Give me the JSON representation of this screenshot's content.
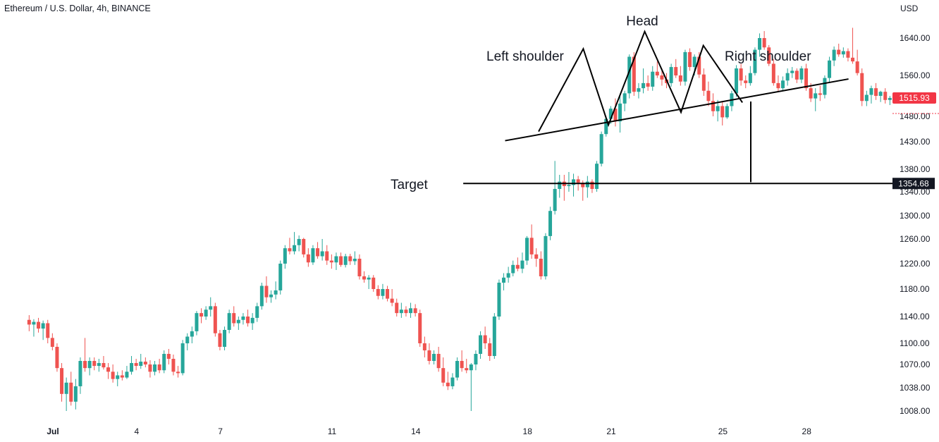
{
  "header": {
    "symbol": "Ethereum / U.S. Dollar, 4h, BINANCE"
  },
  "price_axis": {
    "currency": "USD"
  },
  "colors": {
    "up": "#26a69a",
    "down": "#ef5350",
    "last_price_bg": "#f23645",
    "target_bg": "#131722",
    "pattern_line": "#000000",
    "text": "#131722"
  },
  "chart_data": {
    "type": "candlestick",
    "y_ticks": [
      1008,
      1038,
      1070,
      1100,
      1140,
      1180,
      1220,
      1260,
      1300,
      1340,
      1380,
      1430,
      1480,
      1560,
      1640
    ],
    "y_tick_labels": [
      "1008.00",
      "1038.00",
      "1070.00",
      "1100.00",
      "1140.00",
      "1180.00",
      "1220.00",
      "1260.00",
      "1300.00",
      "1340.00",
      "1380.00",
      "1430.00",
      "1480.00",
      "1560.00",
      "1640.00"
    ],
    "x_ticks": [
      {
        "label": "Jul",
        "day": 1
      },
      {
        "label": "4",
        "day": 4
      },
      {
        "label": "7",
        "day": 7
      },
      {
        "label": "11",
        "day": 11
      },
      {
        "label": "14",
        "day": 14
      },
      {
        "label": "18",
        "day": 18
      },
      {
        "label": "21",
        "day": 21
      },
      {
        "label": "25",
        "day": 25
      },
      {
        "label": "28",
        "day": 28
      }
    ],
    "candles_per_day": 6,
    "start_day": 0.15,
    "last_price": {
      "value": 1515.93,
      "label": "1515.93"
    },
    "target_price": {
      "value": 1354.68,
      "label": "1354.68"
    },
    "annotations": {
      "head": "Head",
      "left_shoulder": "Left shoulder",
      "right_shoulder": "Right shoulder",
      "target": "Target"
    },
    "pattern": {
      "neckline": [
        [
          17.2,
          1432
        ],
        [
          29.5,
          1553
        ]
      ],
      "outline": [
        [
          18.4,
          1450
        ],
        [
          20.0,
          1617
        ],
        [
          20.9,
          1463
        ],
        [
          22.2,
          1654
        ],
        [
          23.5,
          1488
        ],
        [
          24.3,
          1624
        ],
        [
          25.7,
          1507
        ]
      ],
      "target_line": {
        "x_start": 15.7,
        "value": 1354.68
      },
      "measure_line": {
        "x": 26.0,
        "top": 1509,
        "bottom": 1357
      }
    },
    "candles": [
      {
        "o": 1135,
        "h": 1142,
        "l": 1118,
        "c": 1128
      },
      {
        "o": 1128,
        "h": 1136,
        "l": 1110,
        "c": 1132
      },
      {
        "o": 1132,
        "h": 1138,
        "l": 1116,
        "c": 1122
      },
      {
        "o": 1122,
        "h": 1134,
        "l": 1105,
        "c": 1130
      },
      {
        "o": 1130,
        "h": 1135,
        "l": 1100,
        "c": 1108
      },
      {
        "o": 1108,
        "h": 1115,
        "l": 1090,
        "c": 1095
      },
      {
        "o": 1095,
        "h": 1100,
        "l": 1060,
        "c": 1065
      },
      {
        "o": 1065,
        "h": 1072,
        "l": 1020,
        "c": 1030
      },
      {
        "o": 1030,
        "h": 1052,
        "l": 1008,
        "c": 1045
      },
      {
        "o": 1045,
        "h": 1060,
        "l": 1015,
        "c": 1020
      },
      {
        "o": 1020,
        "h": 1050,
        "l": 1010,
        "c": 1040
      },
      {
        "o": 1040,
        "h": 1080,
        "l": 1030,
        "c": 1075
      },
      {
        "o": 1075,
        "h": 1108,
        "l": 1060,
        "c": 1065
      },
      {
        "o": 1065,
        "h": 1080,
        "l": 1055,
        "c": 1075
      },
      {
        "o": 1075,
        "h": 1080,
        "l": 1062,
        "c": 1068
      },
      {
        "o": 1068,
        "h": 1078,
        "l": 1060,
        "c": 1072
      },
      {
        "o": 1072,
        "h": 1082,
        "l": 1063,
        "c": 1066
      },
      {
        "o": 1066,
        "h": 1072,
        "l": 1050,
        "c": 1060
      },
      {
        "o": 1060,
        "h": 1070,
        "l": 1045,
        "c": 1050
      },
      {
        "o": 1050,
        "h": 1060,
        "l": 1040,
        "c": 1055
      },
      {
        "o": 1055,
        "h": 1062,
        "l": 1048,
        "c": 1052
      },
      {
        "o": 1052,
        "h": 1068,
        "l": 1050,
        "c": 1060
      },
      {
        "o": 1060,
        "h": 1082,
        "l": 1056,
        "c": 1072
      },
      {
        "o": 1072,
        "h": 1078,
        "l": 1062,
        "c": 1068
      },
      {
        "o": 1068,
        "h": 1085,
        "l": 1064,
        "c": 1074
      },
      {
        "o": 1074,
        "h": 1080,
        "l": 1066,
        "c": 1070
      },
      {
        "o": 1070,
        "h": 1076,
        "l": 1052,
        "c": 1060
      },
      {
        "o": 1060,
        "h": 1075,
        "l": 1055,
        "c": 1070
      },
      {
        "o": 1070,
        "h": 1078,
        "l": 1058,
        "c": 1062
      },
      {
        "o": 1062,
        "h": 1090,
        "l": 1058,
        "c": 1085
      },
      {
        "o": 1085,
        "h": 1092,
        "l": 1070,
        "c": 1078
      },
      {
        "o": 1078,
        "h": 1084,
        "l": 1055,
        "c": 1060
      },
      {
        "o": 1060,
        "h": 1068,
        "l": 1052,
        "c": 1058
      },
      {
        "o": 1058,
        "h": 1105,
        "l": 1055,
        "c": 1100
      },
      {
        "o": 1100,
        "h": 1115,
        "l": 1090,
        "c": 1110
      },
      {
        "o": 1110,
        "h": 1125,
        "l": 1100,
        "c": 1118
      },
      {
        "o": 1118,
        "h": 1148,
        "l": 1112,
        "c": 1145
      },
      {
        "o": 1145,
        "h": 1152,
        "l": 1130,
        "c": 1140
      },
      {
        "o": 1140,
        "h": 1155,
        "l": 1135,
        "c": 1150
      },
      {
        "o": 1150,
        "h": 1168,
        "l": 1140,
        "c": 1155
      },
      {
        "o": 1155,
        "h": 1160,
        "l": 1110,
        "c": 1115
      },
      {
        "o": 1115,
        "h": 1120,
        "l": 1090,
        "c": 1095
      },
      {
        "o": 1095,
        "h": 1125,
        "l": 1090,
        "c": 1120
      },
      {
        "o": 1120,
        "h": 1150,
        "l": 1115,
        "c": 1145
      },
      {
        "o": 1145,
        "h": 1155,
        "l": 1125,
        "c": 1130
      },
      {
        "o": 1130,
        "h": 1140,
        "l": 1120,
        "c": 1135
      },
      {
        "o": 1135,
        "h": 1145,
        "l": 1128,
        "c": 1140
      },
      {
        "o": 1140,
        "h": 1150,
        "l": 1125,
        "c": 1130
      },
      {
        "o": 1130,
        "h": 1145,
        "l": 1120,
        "c": 1138
      },
      {
        "o": 1138,
        "h": 1160,
        "l": 1132,
        "c": 1155
      },
      {
        "o": 1155,
        "h": 1190,
        "l": 1150,
        "c": 1185
      },
      {
        "o": 1185,
        "h": 1200,
        "l": 1160,
        "c": 1168
      },
      {
        "o": 1168,
        "h": 1178,
        "l": 1160,
        "c": 1172
      },
      {
        "o": 1172,
        "h": 1192,
        "l": 1165,
        "c": 1178
      },
      {
        "o": 1178,
        "h": 1225,
        "l": 1172,
        "c": 1220
      },
      {
        "o": 1220,
        "h": 1250,
        "l": 1212,
        "c": 1245
      },
      {
        "o": 1245,
        "h": 1262,
        "l": 1235,
        "c": 1240
      },
      {
        "o": 1240,
        "h": 1272,
        "l": 1235,
        "c": 1250
      },
      {
        "o": 1250,
        "h": 1266,
        "l": 1240,
        "c": 1260
      },
      {
        "o": 1260,
        "h": 1262,
        "l": 1230,
        "c": 1235
      },
      {
        "o": 1235,
        "h": 1245,
        "l": 1215,
        "c": 1222
      },
      {
        "o": 1222,
        "h": 1250,
        "l": 1218,
        "c": 1245
      },
      {
        "o": 1245,
        "h": 1255,
        "l": 1228,
        "c": 1232
      },
      {
        "o": 1232,
        "h": 1260,
        "l": 1225,
        "c": 1240
      },
      {
        "o": 1240,
        "h": 1250,
        "l": 1218,
        "c": 1225
      },
      {
        "o": 1225,
        "h": 1235,
        "l": 1212,
        "c": 1222
      },
      {
        "o": 1222,
        "h": 1238,
        "l": 1210,
        "c": 1232
      },
      {
        "o": 1232,
        "h": 1238,
        "l": 1215,
        "c": 1218
      },
      {
        "o": 1218,
        "h": 1236,
        "l": 1214,
        "c": 1232
      },
      {
        "o": 1232,
        "h": 1236,
        "l": 1218,
        "c": 1224
      },
      {
        "o": 1224,
        "h": 1240,
        "l": 1218,
        "c": 1228
      },
      {
        "o": 1228,
        "h": 1235,
        "l": 1195,
        "c": 1200
      },
      {
        "o": 1200,
        "h": 1208,
        "l": 1190,
        "c": 1195
      },
      {
        "o": 1195,
        "h": 1202,
        "l": 1180,
        "c": 1198
      },
      {
        "o": 1198,
        "h": 1202,
        "l": 1176,
        "c": 1180
      },
      {
        "o": 1180,
        "h": 1186,
        "l": 1165,
        "c": 1170
      },
      {
        "o": 1170,
        "h": 1188,
        "l": 1165,
        "c": 1180
      },
      {
        "o": 1180,
        "h": 1185,
        "l": 1162,
        "c": 1166
      },
      {
        "o": 1166,
        "h": 1180,
        "l": 1155,
        "c": 1160
      },
      {
        "o": 1160,
        "h": 1166,
        "l": 1140,
        "c": 1145
      },
      {
        "o": 1145,
        "h": 1160,
        "l": 1138,
        "c": 1150
      },
      {
        "o": 1150,
        "h": 1155,
        "l": 1140,
        "c": 1145
      },
      {
        "o": 1145,
        "h": 1160,
        "l": 1138,
        "c": 1152
      },
      {
        "o": 1152,
        "h": 1158,
        "l": 1140,
        "c": 1145
      },
      {
        "o": 1145,
        "h": 1150,
        "l": 1095,
        "c": 1100
      },
      {
        "o": 1100,
        "h": 1110,
        "l": 1080,
        "c": 1090
      },
      {
        "o": 1090,
        "h": 1100,
        "l": 1070,
        "c": 1075
      },
      {
        "o": 1075,
        "h": 1090,
        "l": 1070,
        "c": 1085
      },
      {
        "o": 1085,
        "h": 1095,
        "l": 1060,
        "c": 1065
      },
      {
        "o": 1065,
        "h": 1080,
        "l": 1040,
        "c": 1045
      },
      {
        "o": 1045,
        "h": 1060,
        "l": 1035,
        "c": 1040
      },
      {
        "o": 1040,
        "h": 1058,
        "l": 1036,
        "c": 1052
      },
      {
        "o": 1052,
        "h": 1080,
        "l": 1048,
        "c": 1075
      },
      {
        "o": 1075,
        "h": 1090,
        "l": 1060,
        "c": 1065
      },
      {
        "o": 1065,
        "h": 1078,
        "l": 1058,
        "c": 1062
      },
      {
        "o": 1062,
        "h": 1072,
        "l": 1008,
        "c": 1070
      },
      {
        "o": 1070,
        "h": 1090,
        "l": 1062,
        "c": 1085
      },
      {
        "o": 1085,
        "h": 1118,
        "l": 1078,
        "c": 1112
      },
      {
        "o": 1112,
        "h": 1125,
        "l": 1092,
        "c": 1100
      },
      {
        "o": 1100,
        "h": 1108,
        "l": 1075,
        "c": 1082
      },
      {
        "o": 1082,
        "h": 1145,
        "l": 1078,
        "c": 1140
      },
      {
        "o": 1140,
        "h": 1195,
        "l": 1135,
        "c": 1190
      },
      {
        "o": 1190,
        "h": 1205,
        "l": 1178,
        "c": 1198
      },
      {
        "o": 1198,
        "h": 1215,
        "l": 1190,
        "c": 1205
      },
      {
        "o": 1205,
        "h": 1225,
        "l": 1200,
        "c": 1218
      },
      {
        "o": 1218,
        "h": 1230,
        "l": 1208,
        "c": 1212
      },
      {
        "o": 1212,
        "h": 1238,
        "l": 1205,
        "c": 1225
      },
      {
        "o": 1225,
        "h": 1265,
        "l": 1218,
        "c": 1262
      },
      {
        "o": 1262,
        "h": 1285,
        "l": 1228,
        "c": 1235
      },
      {
        "o": 1235,
        "h": 1245,
        "l": 1215,
        "c": 1228
      },
      {
        "o": 1228,
        "h": 1240,
        "l": 1195,
        "c": 1200
      },
      {
        "o": 1200,
        "h": 1270,
        "l": 1195,
        "c": 1265
      },
      {
        "o": 1265,
        "h": 1315,
        "l": 1258,
        "c": 1308
      },
      {
        "o": 1308,
        "h": 1395,
        "l": 1302,
        "c": 1345
      },
      {
        "o": 1345,
        "h": 1370,
        "l": 1330,
        "c": 1358
      },
      {
        "o": 1358,
        "h": 1370,
        "l": 1325,
        "c": 1350
      },
      {
        "o": 1350,
        "h": 1375,
        "l": 1340,
        "c": 1352
      },
      {
        "o": 1352,
        "h": 1372,
        "l": 1332,
        "c": 1362
      },
      {
        "o": 1362,
        "h": 1368,
        "l": 1342,
        "c": 1356
      },
      {
        "o": 1356,
        "h": 1360,
        "l": 1325,
        "c": 1348
      },
      {
        "o": 1348,
        "h": 1368,
        "l": 1330,
        "c": 1358
      },
      {
        "o": 1358,
        "h": 1362,
        "l": 1338,
        "c": 1345
      },
      {
        "o": 1345,
        "h": 1395,
        "l": 1340,
        "c": 1390
      },
      {
        "o": 1390,
        "h": 1450,
        "l": 1385,
        "c": 1445
      },
      {
        "o": 1445,
        "h": 1480,
        "l": 1440,
        "c": 1475
      },
      {
        "o": 1475,
        "h": 1500,
        "l": 1465,
        "c": 1495
      },
      {
        "o": 1495,
        "h": 1515,
        "l": 1460,
        "c": 1470
      },
      {
        "o": 1470,
        "h": 1520,
        "l": 1448,
        "c": 1505
      },
      {
        "o": 1505,
        "h": 1530,
        "l": 1490,
        "c": 1525
      },
      {
        "o": 1525,
        "h": 1605,
        "l": 1515,
        "c": 1600
      },
      {
        "o": 1600,
        "h": 1610,
        "l": 1520,
        "c": 1528
      },
      {
        "o": 1528,
        "h": 1545,
        "l": 1515,
        "c": 1535
      },
      {
        "o": 1535,
        "h": 1575,
        "l": 1525,
        "c": 1545
      },
      {
        "o": 1545,
        "h": 1560,
        "l": 1530,
        "c": 1538
      },
      {
        "o": 1538,
        "h": 1580,
        "l": 1530,
        "c": 1568
      },
      {
        "o": 1568,
        "h": 1590,
        "l": 1555,
        "c": 1560
      },
      {
        "o": 1560,
        "h": 1575,
        "l": 1540,
        "c": 1552
      },
      {
        "o": 1552,
        "h": 1565,
        "l": 1535,
        "c": 1545
      },
      {
        "o": 1545,
        "h": 1585,
        "l": 1538,
        "c": 1578
      },
      {
        "o": 1578,
        "h": 1595,
        "l": 1555,
        "c": 1560
      },
      {
        "o": 1560,
        "h": 1580,
        "l": 1540,
        "c": 1548
      },
      {
        "o": 1548,
        "h": 1615,
        "l": 1540,
        "c": 1610
      },
      {
        "o": 1610,
        "h": 1618,
        "l": 1570,
        "c": 1578
      },
      {
        "o": 1578,
        "h": 1605,
        "l": 1560,
        "c": 1600
      },
      {
        "o": 1600,
        "h": 1610,
        "l": 1555,
        "c": 1562
      },
      {
        "o": 1562,
        "h": 1575,
        "l": 1520,
        "c": 1530
      },
      {
        "o": 1530,
        "h": 1548,
        "l": 1500,
        "c": 1510
      },
      {
        "o": 1510,
        "h": 1525,
        "l": 1480,
        "c": 1490
      },
      {
        "o": 1490,
        "h": 1512,
        "l": 1470,
        "c": 1500
      },
      {
        "o": 1500,
        "h": 1510,
        "l": 1462,
        "c": 1478
      },
      {
        "o": 1478,
        "h": 1505,
        "l": 1475,
        "c": 1500
      },
      {
        "o": 1500,
        "h": 1530,
        "l": 1490,
        "c": 1525
      },
      {
        "o": 1525,
        "h": 1582,
        "l": 1518,
        "c": 1575
      },
      {
        "o": 1575,
        "h": 1585,
        "l": 1540,
        "c": 1550
      },
      {
        "o": 1550,
        "h": 1560,
        "l": 1535,
        "c": 1545
      },
      {
        "o": 1545,
        "h": 1580,
        "l": 1540,
        "c": 1565
      },
      {
        "o": 1565,
        "h": 1620,
        "l": 1560,
        "c": 1615
      },
      {
        "o": 1615,
        "h": 1650,
        "l": 1600,
        "c": 1640
      },
      {
        "o": 1640,
        "h": 1655,
        "l": 1615,
        "c": 1620
      },
      {
        "o": 1620,
        "h": 1625,
        "l": 1580,
        "c": 1585
      },
      {
        "o": 1585,
        "h": 1595,
        "l": 1540,
        "c": 1545
      },
      {
        "o": 1545,
        "h": 1560,
        "l": 1528,
        "c": 1535
      },
      {
        "o": 1535,
        "h": 1558,
        "l": 1530,
        "c": 1550
      },
      {
        "o": 1550,
        "h": 1575,
        "l": 1540,
        "c": 1565
      },
      {
        "o": 1565,
        "h": 1578,
        "l": 1555,
        "c": 1570
      },
      {
        "o": 1570,
        "h": 1575,
        "l": 1545,
        "c": 1552
      },
      {
        "o": 1552,
        "h": 1580,
        "l": 1545,
        "c": 1575
      },
      {
        "o": 1575,
        "h": 1585,
        "l": 1530,
        "c": 1535
      },
      {
        "o": 1535,
        "h": 1545,
        "l": 1508,
        "c": 1515
      },
      {
        "o": 1515,
        "h": 1535,
        "l": 1490,
        "c": 1525
      },
      {
        "o": 1525,
        "h": 1540,
        "l": 1510,
        "c": 1522
      },
      {
        "o": 1522,
        "h": 1560,
        "l": 1515,
        "c": 1555
      },
      {
        "o": 1555,
        "h": 1600,
        "l": 1545,
        "c": 1592
      },
      {
        "o": 1592,
        "h": 1622,
        "l": 1580,
        "c": 1615
      },
      {
        "o": 1615,
        "h": 1628,
        "l": 1600,
        "c": 1605
      },
      {
        "o": 1605,
        "h": 1620,
        "l": 1598,
        "c": 1612
      },
      {
        "o": 1612,
        "h": 1618,
        "l": 1590,
        "c": 1598
      },
      {
        "o": 1598,
        "h": 1662,
        "l": 1585,
        "c": 1590
      },
      {
        "o": 1590,
        "h": 1615,
        "l": 1560,
        "c": 1565
      },
      {
        "o": 1565,
        "h": 1575,
        "l": 1500,
        "c": 1510
      },
      {
        "o": 1510,
        "h": 1530,
        "l": 1500,
        "c": 1522
      },
      {
        "o": 1522,
        "h": 1540,
        "l": 1505,
        "c": 1535
      },
      {
        "o": 1535,
        "h": 1545,
        "l": 1512,
        "c": 1520
      },
      {
        "o": 1520,
        "h": 1530,
        "l": 1508,
        "c": 1528
      },
      {
        "o": 1528,
        "h": 1535,
        "l": 1505,
        "c": 1512
      },
      {
        "o": 1512,
        "h": 1520,
        "l": 1502,
        "c": 1516
      }
    ]
  }
}
